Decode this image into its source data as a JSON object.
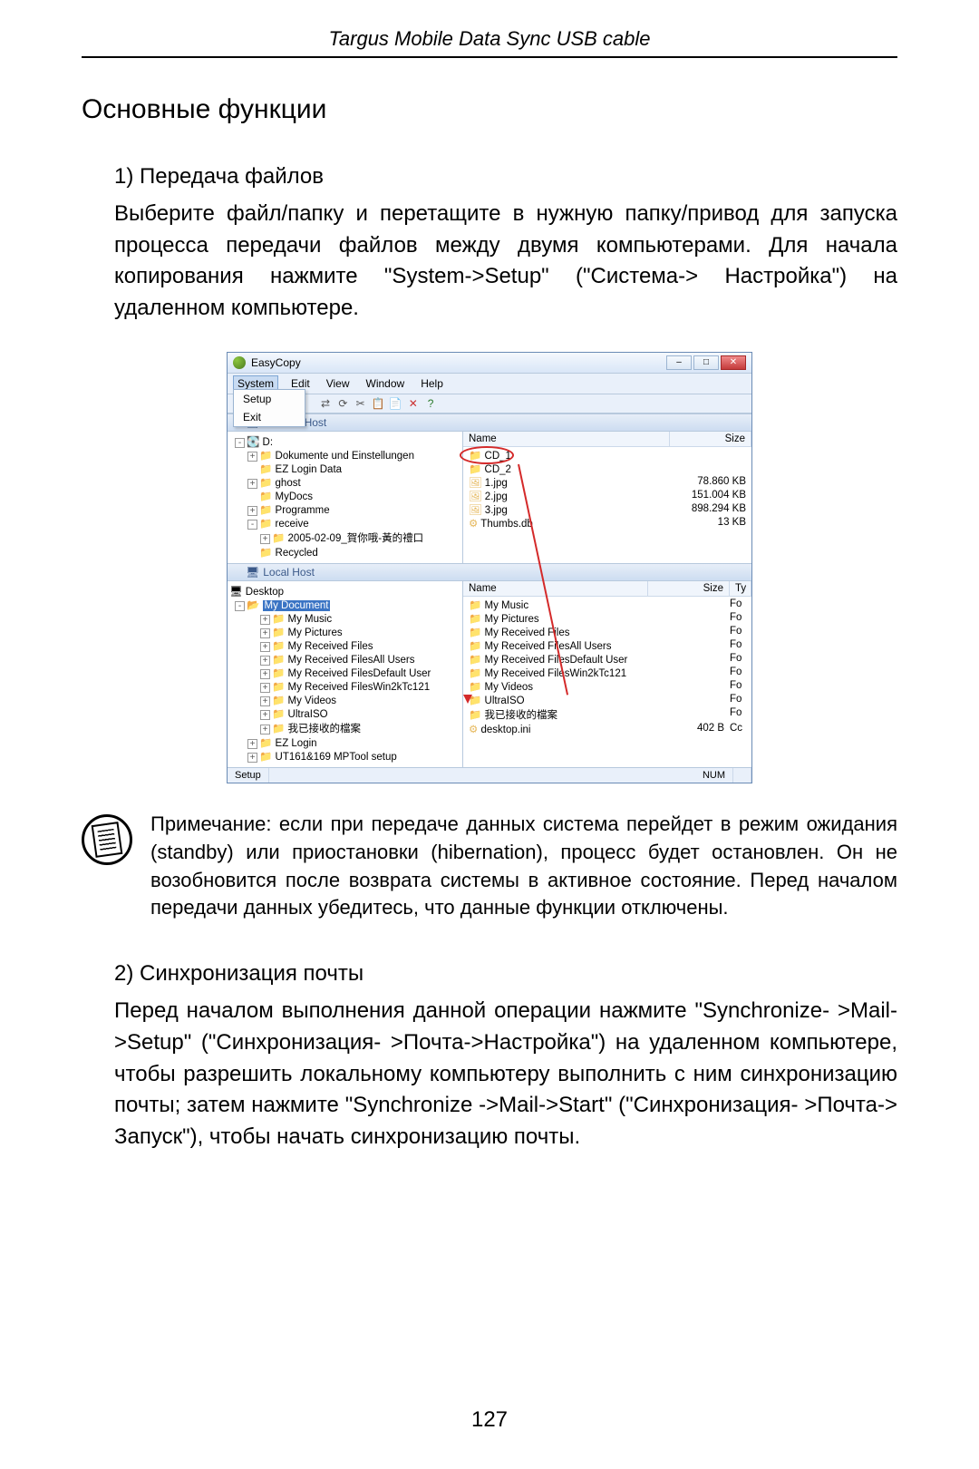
{
  "header": "Targus Mobile Data Sync USB cable",
  "main_title": "Основные функции",
  "section1_heading": "1) Передача файлов",
  "section1_body": "Выберите файл/папку и перетащите в нужную папку/привод для запуска процесса передачи файлов между двумя компьютерами. Для начала копирования нажмите \"System->Setup\" (\"Система-> Настройка\") на удаленном компьютере.",
  "note_text": "Примечание: если при передаче данных система перейдет в режим ожидания (standby) или приостановки (hibernation), процесс будет остановлен. Он не возобновится после возврата системы в активное состояние. Перед началом передачи данных убедитесь, что данные функции отключены.",
  "section2_heading": "2) Синхронизация почты",
  "section2_body": "Перед началом выполнения данной операции нажмите \"Synchronize- >Mail->Setup\" (\"Синхронизация- >Почта->Настройка\") на удаленном компьютере, чтобы разрешить локальному компьютеру выполнить с ним синхронизацию почты; затем нажмите \"Synchronize ->Mail->Start\" (\"Синхронизация- >Почта-> Запуск\"), чтобы начать синхронизацию почты.",
  "page_number": "127",
  "app": {
    "title": "EasyCopy",
    "menu": [
      "System",
      "Edit",
      "View",
      "Window",
      "Help"
    ],
    "dropdown": [
      "Setup",
      "Exit"
    ],
    "remote_label": "Remote Host",
    "local_label": "Local Host",
    "col_name": "Name",
    "col_size": "Size",
    "col_type": "Ty",
    "remote_tree": [
      {
        "pad": 0,
        "exp": "-",
        "icon": "💽",
        "label": "D:"
      },
      {
        "pad": 14,
        "exp": "+",
        "icon": "📁",
        "label": "Dokumente und Einstellungen"
      },
      {
        "pad": 14,
        "exp": "",
        "icon": "📁",
        "label": "EZ Login Data"
      },
      {
        "pad": 14,
        "exp": "+",
        "icon": "📁",
        "label": "ghost"
      },
      {
        "pad": 14,
        "exp": "",
        "icon": "📁",
        "label": "MyDocs"
      },
      {
        "pad": 14,
        "exp": "+",
        "icon": "📁",
        "label": "Programme"
      },
      {
        "pad": 14,
        "exp": "-",
        "icon": "📁",
        "label": "receive"
      },
      {
        "pad": 28,
        "exp": "+",
        "icon": "📁",
        "label": "2005-02-09_賀你哦-黃的禮口"
      },
      {
        "pad": 14,
        "exp": "",
        "icon": "📁",
        "label": "Recycled"
      }
    ],
    "remote_list": [
      {
        "name": "CD_1",
        "size": "",
        "icon": "📁",
        "ring": true
      },
      {
        "name": "CD_2",
        "size": "",
        "icon": "📁"
      },
      {
        "name": "1.jpg",
        "size": "78.860 KB",
        "icon": "🖼"
      },
      {
        "name": "2.jpg",
        "size": "151.004 KB",
        "icon": "🖼"
      },
      {
        "name": "3.jpg",
        "size": "898.294 KB",
        "icon": "🖼"
      },
      {
        "name": "Thumbs.db",
        "size": "13 KB",
        "icon": "⚙"
      }
    ],
    "local_tree_top": {
      "icon": "🖥",
      "label": "Desktop"
    },
    "local_sel": "My Document",
    "local_tree": [
      {
        "pad": 14,
        "exp": "+",
        "icon": "📁",
        "label": "My Music"
      },
      {
        "pad": 14,
        "exp": "+",
        "icon": "📁",
        "label": "My Pictures"
      },
      {
        "pad": 14,
        "exp": "+",
        "icon": "📁",
        "label": "My Received Files"
      },
      {
        "pad": 14,
        "exp": "+",
        "icon": "📁",
        "label": "My Received FilesAll Users"
      },
      {
        "pad": 14,
        "exp": "+",
        "icon": "📁",
        "label": "My Received FilesDefault User"
      },
      {
        "pad": 14,
        "exp": "+",
        "icon": "📁",
        "label": "My Received FilesWin2kTc121"
      },
      {
        "pad": 14,
        "exp": "+",
        "icon": "📁",
        "label": "My Videos"
      },
      {
        "pad": 14,
        "exp": "+",
        "icon": "📁",
        "label": "UltraISO"
      },
      {
        "pad": 14,
        "exp": "+",
        "icon": "📁",
        "label": "我已接收的檔案"
      },
      {
        "pad": 0,
        "exp": "+",
        "icon": "📁",
        "label": "EZ Login"
      },
      {
        "pad": 0,
        "exp": "+",
        "icon": "📁",
        "label": "UT161&169 MPTool setup"
      }
    ],
    "local_list": [
      {
        "name": "My Music",
        "size": "",
        "ty": "Fo",
        "icon": "📁"
      },
      {
        "name": "My Pictures",
        "size": "",
        "ty": "Fo",
        "icon": "📁"
      },
      {
        "name": "My Received Files",
        "size": "",
        "ty": "Fo",
        "icon": "📁"
      },
      {
        "name": "My Received FilesAll Users",
        "size": "",
        "ty": "Fo",
        "icon": "📁"
      },
      {
        "name": "My Received FilesDefault User",
        "size": "",
        "ty": "Fo",
        "icon": "📁"
      },
      {
        "name": "My Received FilesWin2kTc121",
        "size": "",
        "ty": "Fo",
        "icon": "📁"
      },
      {
        "name": "My Videos",
        "size": "",
        "ty": "Fo",
        "icon": "📁"
      },
      {
        "name": "UltraISO",
        "size": "",
        "ty": "Fo",
        "icon": "📁"
      },
      {
        "name": "我已接收的檔案",
        "size": "",
        "ty": "Fo",
        "icon": "📁"
      },
      {
        "name": "desktop.ini",
        "size": "402 B",
        "ty": "Cc",
        "icon": "⚙"
      }
    ],
    "status_left": "Setup",
    "status_num": "NUM"
  }
}
